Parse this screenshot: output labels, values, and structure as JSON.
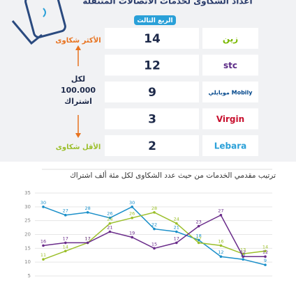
{
  "header": {
    "title": "أعداد الشكاوى لخدمات الاتصالات المتنقلة",
    "period": "الربع الثالث"
  },
  "table": {
    "rows": [
      {
        "logo": "زين",
        "value": 14
      },
      {
        "logo": "stc",
        "value": 12
      },
      {
        "logo": "موبايلي Mobily",
        "value": 9
      },
      {
        "logo": "Virgin",
        "value": 3
      },
      {
        "logo": "Lebara",
        "value": 2
      }
    ]
  },
  "annotations": {
    "most": "الأكثر شكاوى",
    "per_1": "لكل",
    "per_2": "100.000",
    "per_3": "اشتراك",
    "least": "الأقل شكاوى"
  },
  "chart_data": {
    "type": "line",
    "title": "ترتيب مقدمي الخدمات من حيث عدد الشكاوى لكل مئة ألف اشتراك",
    "categories": [
      null,
      null,
      null,
      null,
      null,
      null,
      null,
      null,
      null,
      null,
      null
    ],
    "series": [
      {
        "color": "#1a8fc9",
        "values": [
          30,
          27,
          28,
          26,
          30,
          22,
          21,
          18,
          12,
          11,
          9
        ]
      },
      {
        "color": "#9bbf2a",
        "values": [
          11,
          14,
          17,
          24,
          26,
          28,
          24,
          17,
          16,
          13,
          14
        ]
      },
      {
        "color": "#6a2c8a",
        "values": [
          16,
          17,
          17,
          21,
          19,
          15,
          17,
          23,
          27,
          12,
          12
        ]
      }
    ],
    "ylim": [
      5,
      35
    ],
    "yticks": [
      5,
      10,
      15,
      20,
      25,
      30,
      35
    ],
    "grid": true
  }
}
